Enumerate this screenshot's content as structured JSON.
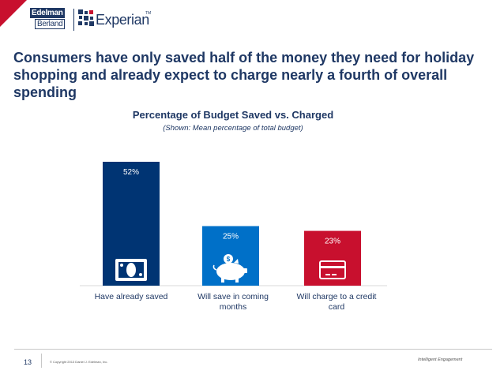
{
  "logos": {
    "edelman_line1": "Edelman",
    "edelman_line2": "Berland",
    "experian": "Experian",
    "experian_tm": "TM"
  },
  "headline": "Consumers have only saved half of the money they need for holiday shopping and already expect to charge nearly a fourth of overall spending",
  "chart_data": {
    "type": "bar",
    "title": "Percentage of Budget Saved vs. Charged",
    "subtitle": "(Shown: Mean percentage of total budget)",
    "categories": [
      "Have already saved",
      "Will save in coming months",
      "Will charge to a credit card"
    ],
    "values": [
      52,
      25,
      23
    ],
    "value_labels": [
      "52%",
      "25%",
      "23%"
    ],
    "colors": [
      "#003473",
      "#0070c8",
      "#c8102e"
    ],
    "icons": [
      "cash-icon",
      "piggy-bank-icon",
      "credit-card-icon"
    ],
    "unit": "%",
    "ylim": [
      0,
      60
    ],
    "grid": false,
    "legend": "none"
  },
  "footer": {
    "page_number": "13",
    "copyright": "© Copyright 2013 Daniel J. Edelman, Inc.",
    "tagline": "Intelligent Engagement"
  }
}
